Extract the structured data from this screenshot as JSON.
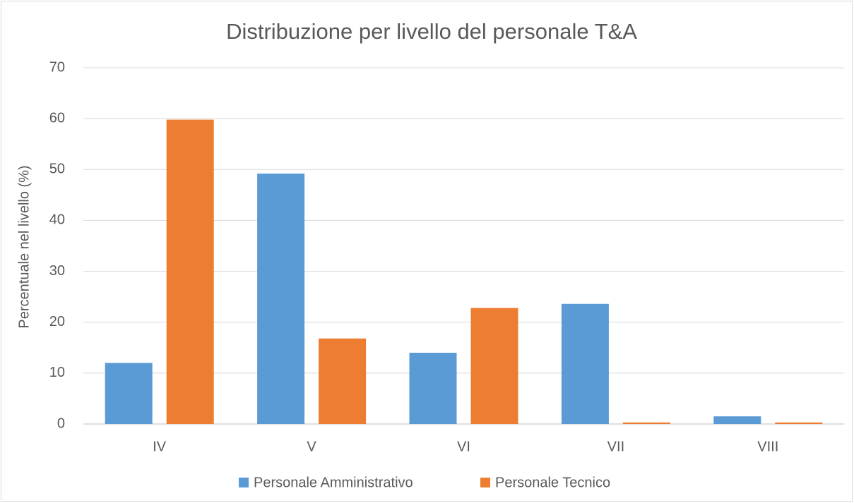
{
  "chart_data": {
    "type": "bar",
    "title": "Distribuzione per livello del personale T&A",
    "y_label": "Percentuale nel livello (%)",
    "categories": [
      "IV",
      "V",
      "VI",
      "VII",
      "VIII"
    ],
    "series": [
      {
        "name": "Personale Amministrativo",
        "color": "#5b9bd5",
        "values": [
          12,
          49.2,
          14,
          23.6,
          1.5
        ]
      },
      {
        "name": "Personale Tecnico",
        "color": "#ed7d31",
        "values": [
          59.8,
          16.8,
          22.8,
          0.3,
          0.3
        ]
      }
    ],
    "ylim": [
      0,
      70
    ],
    "yticks": [
      0,
      10,
      20,
      30,
      40,
      50,
      60,
      70
    ],
    "grid": true,
    "legend": "bottom"
  }
}
